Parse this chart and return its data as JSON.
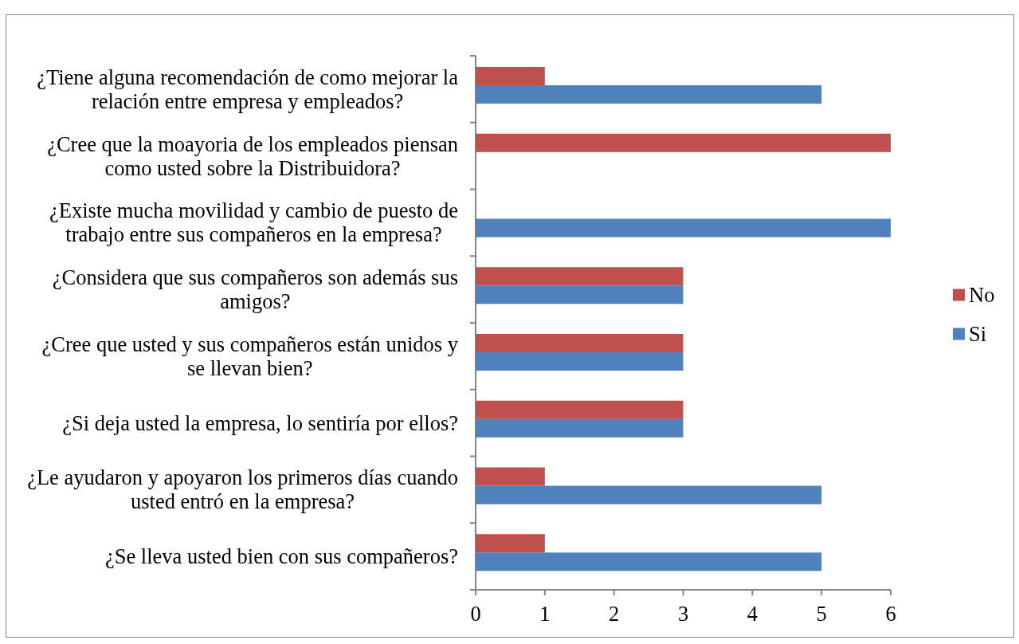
{
  "chart_data": {
    "type": "bar",
    "orientation": "horizontal",
    "categories": [
      "¿Tiene alguna recomendación de como mejorar la relación entre empresa y empleados?",
      "¿Cree que la moayoria de los empleados piensan como usted sobre la Distribuidora?",
      "¿Existe mucha movilidad y cambio de puesto de trabajo entre sus compañeros en la empresa?",
      "¿Considera que sus compañeros son además sus amigos?",
      "¿Cree que usted y sus compañeros están unidos y se llevan bien?",
      "¿Si deja usted la empresa, lo sentiría por ellos?",
      "¿Le ayudaron y apoyaron los primeros días cuando usted entró en la empresa?",
      "¿Se lleva usted bien con sus compañeros?"
    ],
    "series": [
      {
        "name": "No",
        "color": "#c0504d",
        "values": [
          1,
          6,
          0,
          3,
          3,
          3,
          1,
          1
        ]
      },
      {
        "name": "Si",
        "color": "#4f81bd",
        "values": [
          5,
          0,
          6,
          3,
          3,
          3,
          5,
          5
        ]
      }
    ],
    "xlim": [
      0,
      6
    ],
    "xticks": [
      0,
      1,
      2,
      3,
      4,
      5,
      6
    ],
    "legend": "right"
  }
}
